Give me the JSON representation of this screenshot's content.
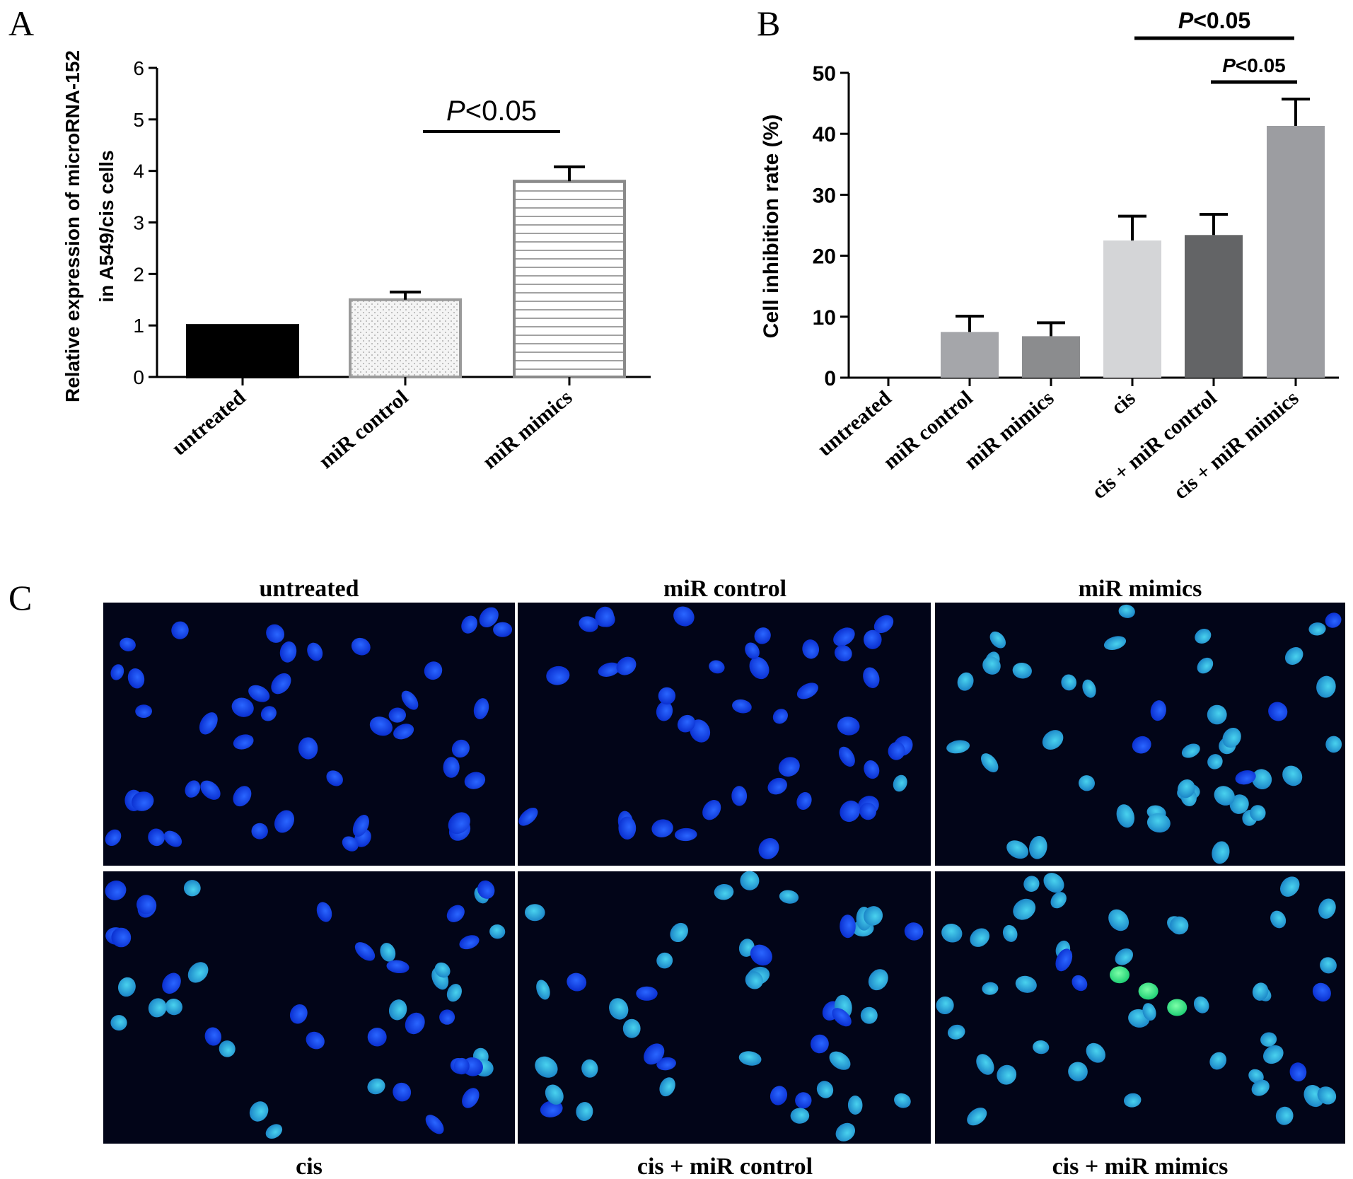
{
  "panels": {
    "A": {
      "letter": "A"
    },
    "B": {
      "letter": "B"
    },
    "C": {
      "letter": "C",
      "top_labels": [
        "untreated",
        "miR control",
        "miR mimics"
      ],
      "bottom_labels": [
        "cis",
        "cis + miR control",
        "cis + miR mimics"
      ]
    }
  },
  "chart_data": [
    {
      "type": "bar",
      "panel": "A",
      "categories": [
        "untreated",
        "miR control",
        "miR mimics"
      ],
      "series": [
        {
          "values": [
            1.0,
            1.5,
            3.8
          ],
          "errors": [
            0.0,
            0.15,
            0.28
          ]
        }
      ],
      "styles": [
        "solid-black",
        "dotted-light-grey",
        "horizontal-lines"
      ],
      "ylabel": "Relative expression of microRNA-152",
      "ylabel2": "in A549/cis cells",
      "ylim": [
        0,
        6
      ],
      "yticks": [
        0,
        1,
        2,
        3,
        4,
        5,
        6
      ],
      "annotations": [
        {
          "prefix": "P",
          "text": "<0.05",
          "from": 1,
          "to": 2
        }
      ]
    },
    {
      "type": "bar",
      "panel": "B",
      "categories": [
        "untreated",
        "miR control",
        "miR mimics",
        "cis",
        "cis + miR control",
        "cis + miR mimics"
      ],
      "series": [
        {
          "values": [
            0,
            7.5,
            6.8,
            22.5,
            23.4,
            41.3
          ],
          "errors": [
            0,
            2.6,
            2.2,
            4.0,
            3.4,
            4.4
          ]
        }
      ],
      "colors": [
        "#ffffff",
        "#a5a6aa",
        "#8b8c8e",
        "#d4d5d7",
        "#636466",
        "#9c9da1"
      ],
      "ylabel": "Cell inhibition rate (%)",
      "ylim": [
        0,
        50
      ],
      "yticks": [
        0,
        10,
        20,
        30,
        40,
        50
      ],
      "annotations": [
        {
          "prefix": "P",
          "text": "<0.05",
          "from": 3,
          "to": 5
        },
        {
          "prefix": "P",
          "text": "<0.05",
          "from": 4,
          "to": 5
        }
      ]
    }
  ]
}
